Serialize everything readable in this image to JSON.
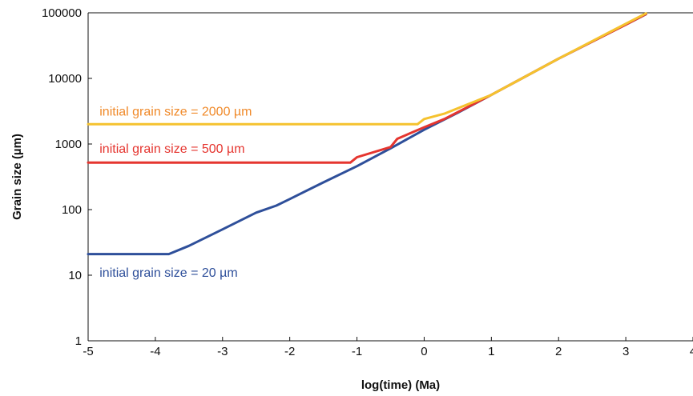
{
  "chart_data": {
    "type": "line",
    "xlabel": "log(time) (Ma)",
    "ylabel": "Grain size (µm)",
    "xlim": [
      -5,
      4
    ],
    "ylim": [
      1,
      100000
    ],
    "yscale": "log",
    "grid": false,
    "x_ticks": [
      {
        "value": -5,
        "label": "-5"
      },
      {
        "value": -4,
        "label": "-4"
      },
      {
        "value": -3,
        "label": "-3"
      },
      {
        "value": -2,
        "label": "-2"
      },
      {
        "value": -1,
        "label": "-1"
      },
      {
        "value": 0,
        "label": "0"
      },
      {
        "value": 1,
        "label": "1"
      },
      {
        "value": 2,
        "label": "2"
      },
      {
        "value": 3,
        "label": "3"
      },
      {
        "value": 4,
        "label": "4"
      }
    ],
    "y_ticks": [
      {
        "value": 1,
        "label": "1"
      },
      {
        "value": 10,
        "label": "10"
      },
      {
        "value": 100,
        "label": "100"
      },
      {
        "value": 1000,
        "label": "1000"
      },
      {
        "value": 10000,
        "label": "10000"
      },
      {
        "value": 100000,
        "label": "100000"
      }
    ],
    "series": [
      {
        "color": "#2e4f9a",
        "x": [
          -5,
          -3.8,
          -3.5,
          -3.0,
          -2.5,
          -2.2,
          -2.0,
          -1.5,
          -1.0,
          -0.5,
          0.0,
          0.5,
          1.0,
          2.0,
          3.0,
          3.3
        ],
        "y": [
          21,
          21,
          28,
          50,
          90,
          115,
          145,
          260,
          460,
          860,
          1650,
          3000,
          5600,
          20000,
          66000,
          95000
        ]
      },
      {
        "color": "#e5352f",
        "x": [
          -5,
          -1.1,
          -1.0,
          -0.5,
          -0.4,
          0.0,
          0.3,
          1.0,
          2.0,
          3.0,
          3.3
        ],
        "y": [
          520,
          520,
          630,
          900,
          1200,
          1800,
          2400,
          5600,
          20000,
          66000,
          96000
        ]
      },
      {
        "color": "#f5c22e",
        "x": [
          -5,
          -0.1,
          0.0,
          0.3,
          0.5,
          1.0,
          2.0,
          3.0,
          3.3
        ],
        "y": [
          2000,
          2000,
          2400,
          2900,
          3500,
          5600,
          20000,
          68000,
          98000
        ]
      }
    ],
    "annotations": [
      {
        "text": "initial grain size = 2000 µm",
        "color": "#f08a2a",
        "x": -4.83,
        "y": 2700
      },
      {
        "text": "initial grain size = 500 µm",
        "color": "#e5352f",
        "x": -4.83,
        "y": 730
      },
      {
        "text": "initial grain size = 20 µm",
        "color": "#2e4f9a",
        "x": -4.83,
        "y": 9.5
      }
    ]
  }
}
